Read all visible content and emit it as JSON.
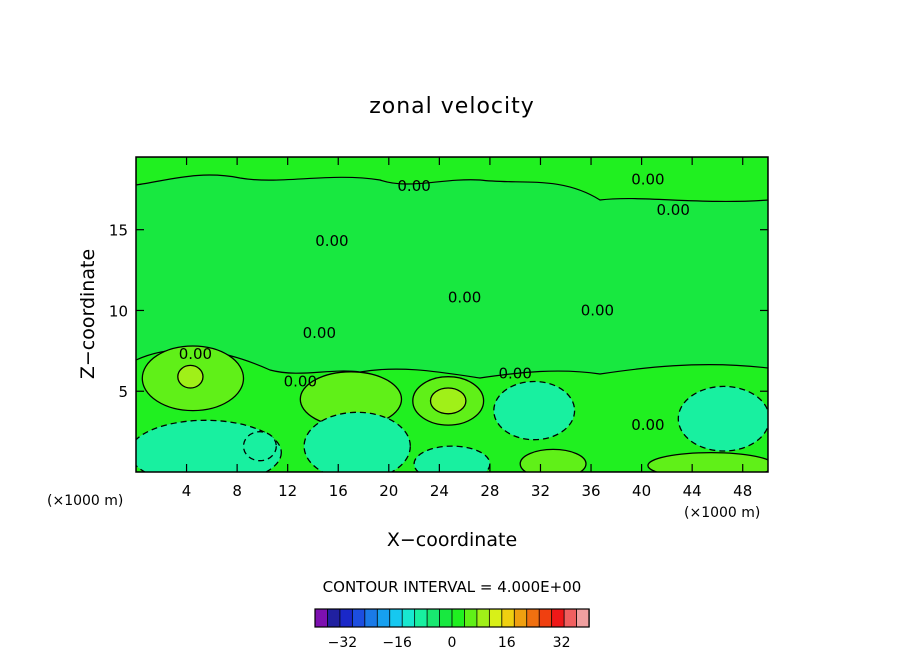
{
  "chart_data": {
    "type": "heatmap",
    "title": "zonal velocity",
    "xlabel": "X−coordinate",
    "ylabel": "Z−coordinate",
    "x_unit_left": "(×1000 m)",
    "x_unit_right": "(×1000 m)",
    "xlim": [
      0,
      50
    ],
    "ylim": [
      0,
      19.5
    ],
    "x_ticks": [
      4,
      8,
      12,
      16,
      20,
      24,
      28,
      32,
      36,
      40,
      44,
      48
    ],
    "x_tick_labels": [
      "4",
      "8",
      "12",
      "16",
      "20",
      "24",
      "28",
      "32",
      "36",
      "40",
      "44",
      "48"
    ],
    "y_ticks": [
      5,
      10,
      15
    ],
    "y_tick_labels": [
      "5",
      "10",
      "15"
    ],
    "contour_interval_text": "CONTOUR INTERVAL = 4.000E+00",
    "contour_labels": [
      {
        "text": "0.00",
        "x": 22.0,
        "y": 17.4
      },
      {
        "text": "0.00",
        "x": 40.5,
        "y": 17.8
      },
      {
        "text": "0.00",
        "x": 42.5,
        "y": 15.9
      },
      {
        "text": "0.00",
        "x": 15.5,
        "y": 14.0
      },
      {
        "text": "0.00",
        "x": 26.0,
        "y": 10.5
      },
      {
        "text": "0.00",
        "x": 36.5,
        "y": 9.7
      },
      {
        "text": "0.00",
        "x": 14.5,
        "y": 8.3
      },
      {
        "text": "0.00",
        "x": 4.7,
        "y": 7.0
      },
      {
        "text": "0.00",
        "x": 13.0,
        "y": 5.3
      },
      {
        "text": "0.00",
        "x": 30.0,
        "y": 5.8
      },
      {
        "text": "0.00",
        "x": 40.5,
        "y": 2.6
      }
    ],
    "features": [
      {
        "kind": "positive",
        "x": 4.5,
        "y": 5.8,
        "rx": 4.0,
        "ry": 2.0,
        "level": 1
      },
      {
        "kind": "positive",
        "x": 4.3,
        "y": 5.9,
        "rx": 1.0,
        "ry": 0.7,
        "level": 2
      },
      {
        "kind": "positive",
        "x": 17.0,
        "y": 4.5,
        "rx": 4.0,
        "ry": 1.7,
        "level": 1
      },
      {
        "kind": "positive",
        "x": 24.7,
        "y": 4.4,
        "rx": 2.8,
        "ry": 1.5,
        "level": 1
      },
      {
        "kind": "positive",
        "x": 24.7,
        "y": 4.4,
        "rx": 1.4,
        "ry": 0.8,
        "level": 2
      },
      {
        "kind": "positive",
        "x": 33.0,
        "y": 0.5,
        "rx": 2.6,
        "ry": 0.9,
        "level": 1
      },
      {
        "kind": "positive",
        "x": 45.5,
        "y": 0.4,
        "rx": 5.0,
        "ry": 0.8,
        "level": 1
      },
      {
        "kind": "negative",
        "x": 5.5,
        "y": 1.2,
        "rx": 6.0,
        "ry": 2.0,
        "level": 1
      },
      {
        "kind": "negative",
        "x": 9.8,
        "y": 1.6,
        "rx": 1.3,
        "ry": 0.9,
        "level": 1
      },
      {
        "kind": "negative",
        "x": 17.5,
        "y": 1.6,
        "rx": 4.2,
        "ry": 2.1,
        "level": 1
      },
      {
        "kind": "negative",
        "x": 25.0,
        "y": 0.5,
        "rx": 3.0,
        "ry": 1.1,
        "level": 1
      },
      {
        "kind": "negative",
        "x": 31.5,
        "y": 3.8,
        "rx": 3.2,
        "ry": 1.8,
        "level": 1
      },
      {
        "kind": "negative",
        "x": 46.5,
        "y": 3.3,
        "rx": 3.6,
        "ry": 2.0,
        "level": 1
      }
    ],
    "colorbar": {
      "tick_labels": [
        "−32",
        "−16",
        "0",
        "16",
        "32"
      ],
      "tick_values": [
        -32,
        -16,
        0,
        16,
        32
      ],
      "min": -40,
      "max": 40,
      "colors": [
        "#7d10b0",
        "#2020a0",
        "#1a28c8",
        "#1c4ee0",
        "#1a7ae8",
        "#16a0f0",
        "#16c8f0",
        "#18e8d0",
        "#18f0a0",
        "#18e870",
        "#18e840",
        "#20f020",
        "#60f018",
        "#a0f018",
        "#d8f018",
        "#f0d010",
        "#f0a010",
        "#f07010",
        "#f04010",
        "#f01818",
        "#f06060",
        "#f0a0a0"
      ]
    }
  }
}
